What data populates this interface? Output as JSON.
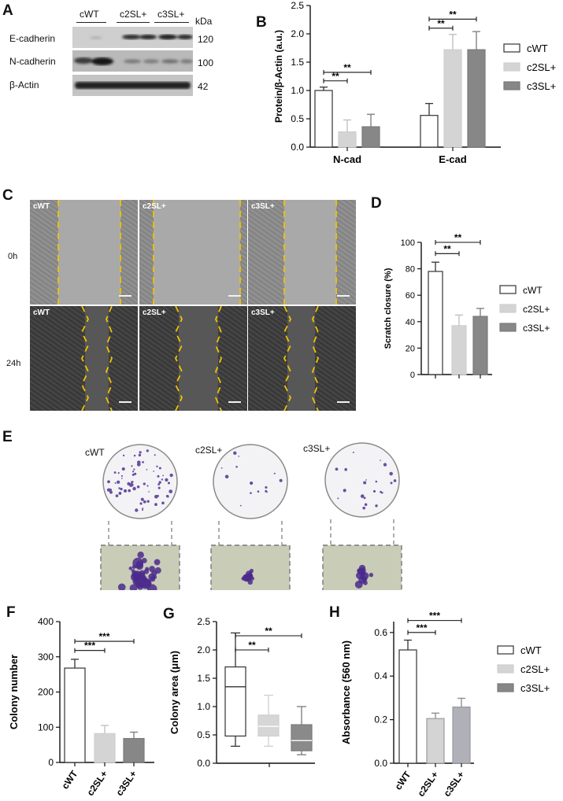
{
  "panels": {
    "A": {
      "label": "A",
      "lanes": [
        "cWT",
        "c2SL+",
        "c3SL+"
      ],
      "kda_header": "kDa",
      "blots": [
        {
          "name": "E-cadherin",
          "kda": "120"
        },
        {
          "name": "N-cadherin",
          "kda": "100"
        },
        {
          "name": "β-Actin",
          "kda": "42"
        }
      ]
    },
    "B": {
      "label": "B"
    },
    "C": {
      "label": "C",
      "columns": [
        "cWT",
        "c2SL+",
        "c3SL+"
      ],
      "rows": [
        "0h",
        "24h"
      ]
    },
    "D": {
      "label": "D"
    },
    "E": {
      "label": "E",
      "dishes": [
        "cWT",
        "c2SL+",
        "c3SL+"
      ]
    },
    "F": {
      "label": "F"
    },
    "G": {
      "label": "G"
    },
    "H": {
      "label": "H"
    }
  },
  "legend": {
    "entries": [
      "cWT",
      "c2SL+",
      "c3SL+"
    ],
    "colors": [
      "#ffffff",
      "#d4d4d4",
      "#878787"
    ]
  },
  "chart_data": [
    {
      "id": "B",
      "type": "bar",
      "categories": [
        "N-cad",
        "E-cad"
      ],
      "series": [
        {
          "name": "cWT",
          "values": [
            1.0,
            0.56
          ],
          "errors": [
            0.06,
            0.21
          ]
        },
        {
          "name": "c2SL+",
          "values": [
            0.27,
            1.72
          ],
          "errors": [
            0.21,
            0.27
          ]
        },
        {
          "name": "c3SL+",
          "values": [
            0.36,
            1.72
          ],
          "errors": [
            0.22,
            0.32
          ]
        }
      ],
      "ylabel": "Protein/β-Actin (a.u.)",
      "ylim": [
        0,
        2.5
      ],
      "yticks": [
        "0.0",
        "0.5",
        "1.0",
        "1.5",
        "2.0",
        "2.5"
      ],
      "significance": [
        "**",
        "**",
        "**",
        "**"
      ]
    },
    {
      "id": "D",
      "type": "bar",
      "categories": [
        "cWT",
        "c2SL+",
        "c3SL+"
      ],
      "values": [
        78,
        37,
        44
      ],
      "errors": [
        7,
        8,
        6
      ],
      "ylabel": "Scratch closure (%)",
      "ylim": [
        0,
        100
      ],
      "yticks": [
        "0",
        "20",
        "40",
        "60",
        "80",
        "100"
      ],
      "significance": [
        "**",
        "**"
      ]
    },
    {
      "id": "F",
      "type": "bar",
      "categories": [
        "cWT",
        "c2SL+",
        "c3SL+"
      ],
      "values": [
        268,
        82,
        68
      ],
      "errors": [
        25,
        23,
        18
      ],
      "ylabel": "Colony number",
      "ylim": [
        0,
        400
      ],
      "yticks": [
        "0",
        "100",
        "200",
        "300",
        "400"
      ],
      "significance": [
        "***",
        "***"
      ]
    },
    {
      "id": "G",
      "type": "box",
      "categories": [
        "cWT",
        "c2SL+",
        "c3SL+"
      ],
      "boxes": [
        {
          "whisker_low": 0.3,
          "q1": 0.48,
          "median": 1.35,
          "q3": 1.7,
          "whisker_high": 2.3
        },
        {
          "whisker_low": 0.3,
          "q1": 0.48,
          "median": 0.65,
          "q3": 0.85,
          "whisker_high": 1.2
        },
        {
          "whisker_low": 0.15,
          "q1": 0.22,
          "median": 0.4,
          "q3": 0.68,
          "whisker_high": 1.0
        }
      ],
      "ylabel": "Colony area (μm)",
      "ylim": [
        0,
        2.5
      ],
      "yticks": [
        "0.0",
        "0.5",
        "1.0",
        "1.5",
        "2.0",
        "2.5"
      ],
      "significance": [
        "**",
        "**"
      ]
    },
    {
      "id": "H",
      "type": "bar",
      "categories": [
        "cWT",
        "c2SL+",
        "c3SL+"
      ],
      "values": [
        0.52,
        0.205,
        0.258
      ],
      "errors": [
        0.045,
        0.025,
        0.04
      ],
      "ylabel": "Absorbance (560 nm)",
      "ylim": [
        0,
        0.65
      ],
      "yticks": [
        "0.0",
        "0.2",
        "0.4",
        "0.6"
      ],
      "significance": [
        "***",
        "***"
      ]
    }
  ]
}
